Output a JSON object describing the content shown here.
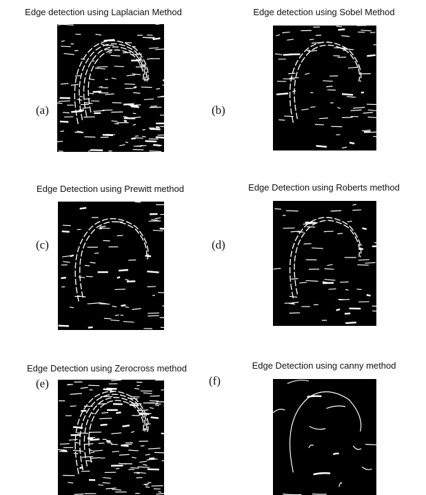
{
  "panels": [
    {
      "title": "Edge detection using Laplacian Method",
      "label": "(a)"
    },
    {
      "title": "Edge detection using Sobel Method",
      "label": "(b)"
    },
    {
      "title": "Edge Detection using Prewitt method",
      "label": "(c)"
    },
    {
      "title": "Edge Detection using Roberts method",
      "label": "(d)"
    },
    {
      "title": "Edge Detection using Zerocross method",
      "label": "(e)"
    },
    {
      "title": "Edge Detection using canny method",
      "label": "(f)"
    }
  ]
}
